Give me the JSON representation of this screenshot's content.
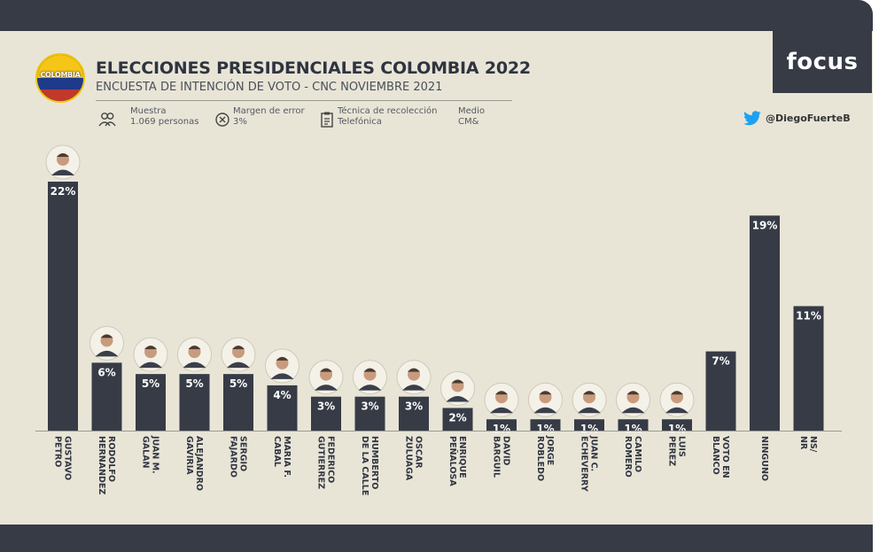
{
  "header": {
    "title": "ELECCIONES PRESIDENCIALES COLOMBIA 2022",
    "subtitle": "ENCUESTA DE INTENCIÓN DE VOTO - CNC NOVIEMBRE 2021",
    "logo_text": "COLOMBIA",
    "meta": [
      {
        "label": "Muestra",
        "value": "1.069 personas",
        "icon": "people-icon"
      },
      {
        "label": "Margen de error",
        "value": "3%",
        "icon": "x-circle-icon"
      },
      {
        "label": "Técnica de recolección",
        "value": "Telefónica",
        "icon": "clipboard-icon"
      },
      {
        "label": "Medio",
        "value": "CM&",
        "icon": ""
      }
    ],
    "brand": "focus",
    "twitter_handle": "@DiegoFuerteB",
    "colors": {
      "bar": "#363b46",
      "panel": "#e8e5d7",
      "frame": "#363b46",
      "twitter": "#1da1f2"
    }
  },
  "chart_data": {
    "type": "bar",
    "categories": [
      [
        "GUSTAVO",
        "PETRO"
      ],
      [
        "RODOLFO",
        "HERNANDEZ"
      ],
      [
        "JUAN M.",
        "GALAN"
      ],
      [
        "ALEJANDRO",
        "GAVIRIA"
      ],
      [
        "SERGIO",
        "FAJARDO"
      ],
      [
        "MARIA F.",
        "CABAL"
      ],
      [
        "FEDERICO",
        "GUTIERREZ"
      ],
      [
        "HUMBERTO",
        "DE LA CALLE"
      ],
      [
        "OSCAR",
        "ZULUAGA"
      ],
      [
        "ENRIQUE",
        "PEÑALOSA"
      ],
      [
        "DAVID",
        "BARGUIL"
      ],
      [
        "JORGE",
        "ROBLEDO"
      ],
      [
        "JUAN C.",
        "ECHEVERRY"
      ],
      [
        "CAMILO",
        "ROMERO"
      ],
      [
        "LUIS",
        "PEREZ"
      ],
      [
        "VOTO EN",
        "BLANCO"
      ],
      [
        "NINGUNO"
      ],
      [
        "NS/",
        "NR"
      ]
    ],
    "values": [
      22,
      6,
      5,
      5,
      5,
      4,
      3,
      3,
      3,
      2,
      1,
      1,
      1,
      1,
      1,
      7,
      19,
      11
    ],
    "labels": [
      "22%",
      "6%",
      "5%",
      "5%",
      "5%",
      "4%",
      "3%",
      "3%",
      "3%",
      "2%",
      "1%",
      "1%",
      "1%",
      "1%",
      "1%",
      "7%",
      "19%",
      "11%"
    ],
    "has_photo": [
      true,
      true,
      true,
      true,
      true,
      true,
      true,
      true,
      true,
      true,
      true,
      true,
      true,
      true,
      true,
      false,
      false,
      false
    ],
    "ylim": [
      0,
      22
    ],
    "grid": false
  }
}
